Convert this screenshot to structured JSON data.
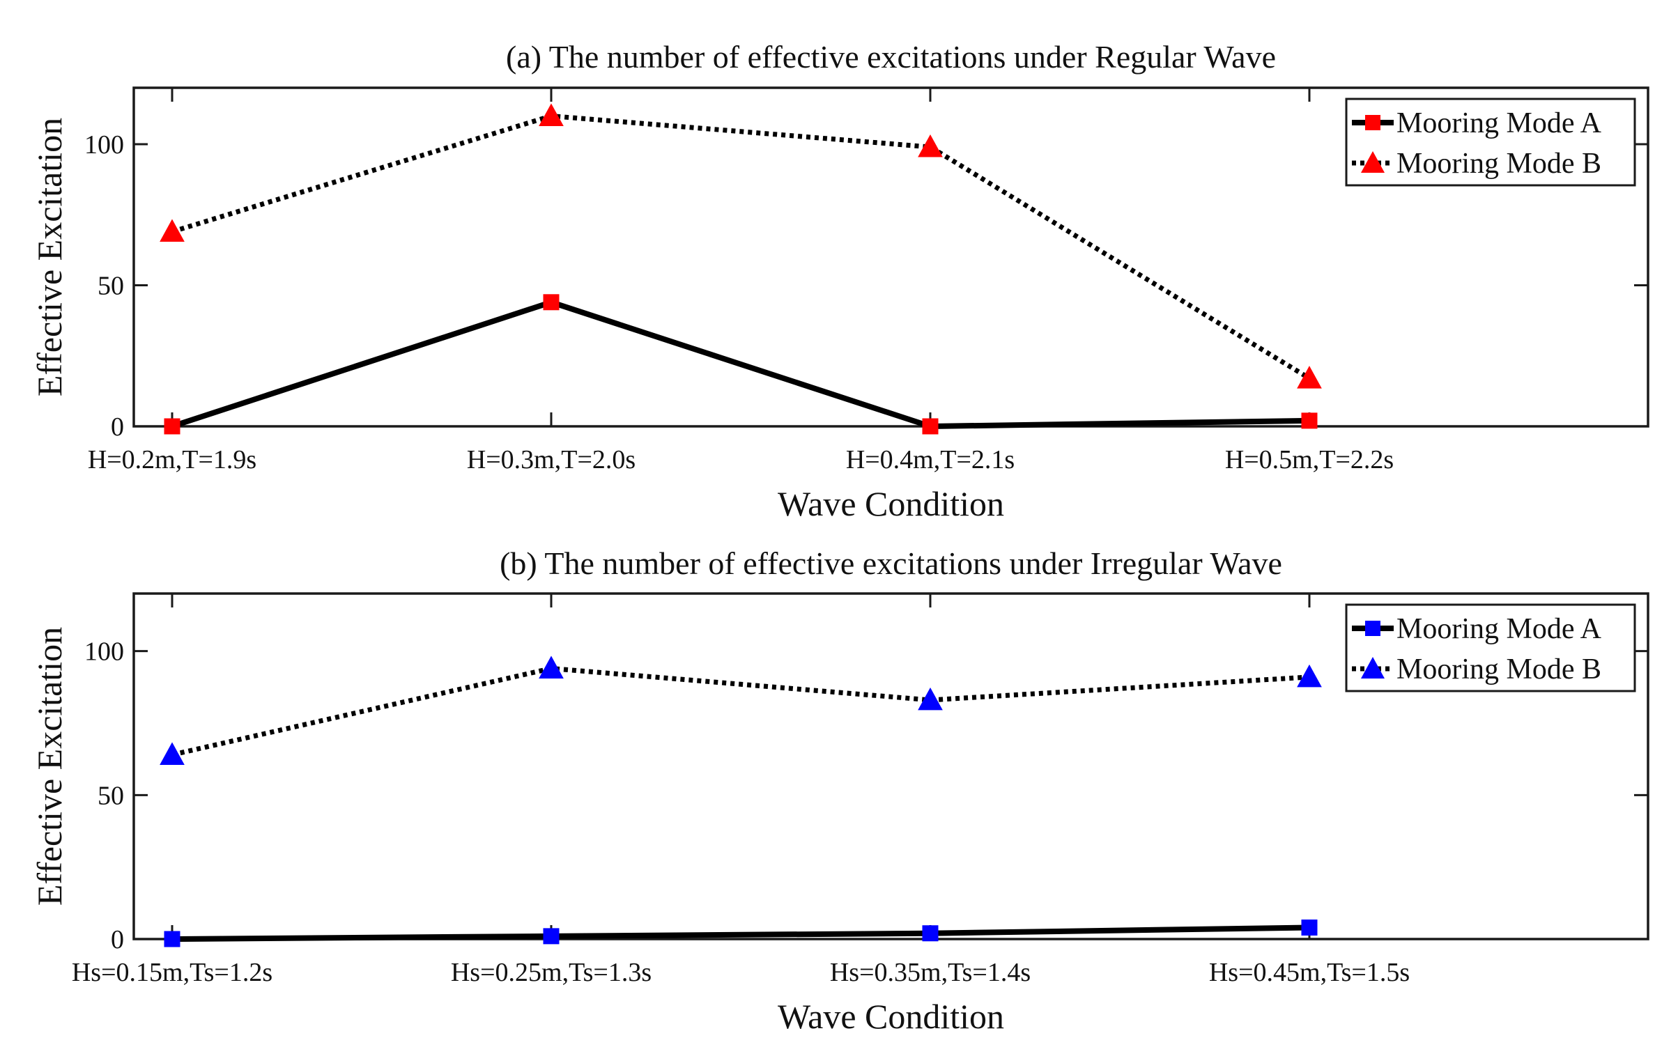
{
  "chart_data": [
    {
      "type": "line",
      "title": "(a) The number of effective excitations under Regular Wave",
      "xlabel": "Wave Condition",
      "ylabel": "Effective Excitation",
      "categories": [
        "H=0.2m,T=1.9s",
        "H=0.3m,T=2.0s",
        "H=0.4m,T=2.1s",
        "H=0.5m,T=2.2s"
      ],
      "ylim": [
        0,
        120
      ],
      "yticks": [
        0,
        50,
        100
      ],
      "marker_color": "#ff0000",
      "legend_position": "top-right",
      "series": [
        {
          "name": "Mooring Mode A",
          "line_style": "solid",
          "marker": "square",
          "values": [
            0,
            44,
            0,
            2
          ]
        },
        {
          "name": "Mooring Mode B",
          "line_style": "dotted",
          "marker": "triangle",
          "values": [
            69,
            110,
            99,
            17
          ]
        }
      ]
    },
    {
      "type": "line",
      "title": "(b) The number of effective excitations under Irregular Wave",
      "xlabel": "Wave Condition",
      "ylabel": "Effective Excitation",
      "categories": [
        "Hs=0.15m,Ts=1.2s",
        "Hs=0.25m,Ts=1.3s",
        "Hs=0.35m,Ts=1.4s",
        "Hs=0.45m,Ts=1.5s"
      ],
      "ylim": [
        0,
        120
      ],
      "yticks": [
        0,
        50,
        100
      ],
      "marker_color": "#0000ff",
      "legend_position": "top-right",
      "series": [
        {
          "name": "Mooring Mode A",
          "line_style": "solid",
          "marker": "square",
          "values": [
            0,
            1,
            2,
            4
          ]
        },
        {
          "name": "Mooring Mode B",
          "line_style": "dotted",
          "marker": "triangle",
          "values": [
            64,
            94,
            83,
            91
          ]
        }
      ]
    }
  ]
}
